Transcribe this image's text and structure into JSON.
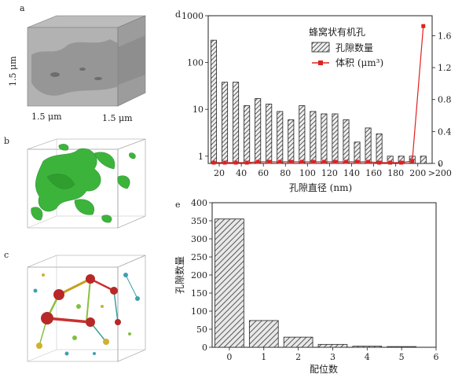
{
  "panels": {
    "a": {
      "label": "a",
      "dim_left": "1.5 μm",
      "dim_bottom_left": "1.5 μm",
      "dim_bottom_right": "1.5 μm"
    },
    "b": {
      "label": "b"
    },
    "c": {
      "label": "c"
    }
  },
  "chart_data": [
    {
      "panel": "d",
      "type": "bar",
      "title": "蜂窝状有机孔",
      "xlabel": "孔隙直径 (nm)",
      "x_tick_labels": [
        "20",
        "40",
        "60",
        "80",
        "100",
        "120",
        "140",
        "160",
        "180",
        "200",
        ">200"
      ],
      "left_axis": {
        "scale": "log",
        "ylim": [
          0.7,
          1000
        ],
        "ticks": [
          1,
          10,
          100,
          1000
        ],
        "tick_labels": [
          "1",
          "10",
          "100",
          "1000"
        ]
      },
      "right_axis": {
        "scale": "linear",
        "ylim": [
          0,
          1.85
        ],
        "ticks": [
          0,
          0.4,
          0.8,
          1.2,
          1.6
        ],
        "tick_labels": [
          "0",
          "0.4",
          "0.8",
          "1.2",
          "1.6"
        ]
      },
      "legend": {
        "position": "top-right",
        "entries": [
          "孔隙数量",
          "体积 (μm³)"
        ]
      },
      "series": [
        {
          "name": "孔隙数量",
          "axis": "left",
          "kind": "bar",
          "style": "hatched",
          "x": [
            15,
            25,
            35,
            45,
            55,
            65,
            75,
            85,
            95,
            105,
            115,
            125,
            135,
            145,
            155,
            165,
            175,
            185,
            195,
            205
          ],
          "values": [
            300,
            38,
            38,
            12,
            17,
            13,
            9,
            6,
            12,
            9,
            8,
            8,
            6,
            2,
            4,
            3,
            1,
            1,
            1,
            1
          ]
        },
        {
          "name": "体积 (μm³)",
          "axis": "right",
          "kind": "line",
          "color": "#e02020",
          "x": [
            15,
            25,
            35,
            45,
            55,
            65,
            75,
            85,
            95,
            105,
            115,
            125,
            135,
            145,
            155,
            165,
            175,
            185,
            195,
            205
          ],
          "values": [
            0.01,
            0.01,
            0.01,
            0.01,
            0.02,
            0.02,
            0.02,
            0.02,
            0.02,
            0.02,
            0.02,
            0.02,
            0.02,
            0.02,
            0.02,
            0.01,
            0.01,
            0.01,
            0.03,
            1.72
          ]
        }
      ]
    },
    {
      "panel": "e",
      "type": "bar",
      "xlabel": "配位数",
      "ylabel": "孔隙数量",
      "categories": [
        0,
        1,
        2,
        3,
        4,
        5
      ],
      "values": [
        355,
        74,
        28,
        8,
        3,
        2
      ],
      "xlim": [
        -0.5,
        6
      ],
      "x_ticks": [
        0,
        1,
        2,
        3,
        4,
        5,
        6
      ],
      "ylim": [
        0,
        400
      ],
      "y_ticks": [
        0,
        50,
        100,
        150,
        200,
        250,
        300,
        350,
        400
      ],
      "style": "hatched"
    }
  ]
}
